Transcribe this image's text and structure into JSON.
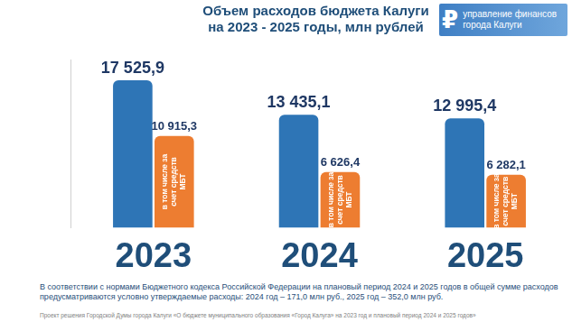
{
  "header": {
    "org": "управление финансов города Калуги",
    "logo_symbol": "₽"
  },
  "chart_data": {
    "type": "bar",
    "title": [
      "Объем расходов бюджета Калуги",
      "на 2023 - 2025 годы, млн рублей"
    ],
    "categories": [
      "2023",
      "2024",
      "2025"
    ],
    "series": [
      {
        "color": "#2e75b6",
        "values": [
          17525.9,
          13435.1,
          12995.4
        ],
        "value_labels": [
          "17 525,9",
          "13 435,1",
          "12 995,4"
        ]
      },
      {
        "name": "в том числе за счет средств МБТ",
        "color": "#ed7d31",
        "values": [
          10915.3,
          6626.4,
          6282.1
        ],
        "value_labels": [
          "10 915,3",
          "6 626,4",
          "6 282,1"
        ]
      }
    ],
    "ylim": [
      0,
      20000
    ],
    "grid": false,
    "tick_labels": "x",
    "data_labels": true
  },
  "note": "В соответствии с нормами Бюджетного кодекса Российской Федерации на плановый период 2024 и 2025 годов в общей сумме расходов предусматриваются условно утверждаемые расходы: 2024 год – 171,0 млн руб., 2025 год – 352,0 млн руб.",
  "source": "Проект решения Городской Думы города Калуги «О бюджете муниципального образования «Город Калуга» на 2023 год и плановый период 2024 и 2025 годов»"
}
